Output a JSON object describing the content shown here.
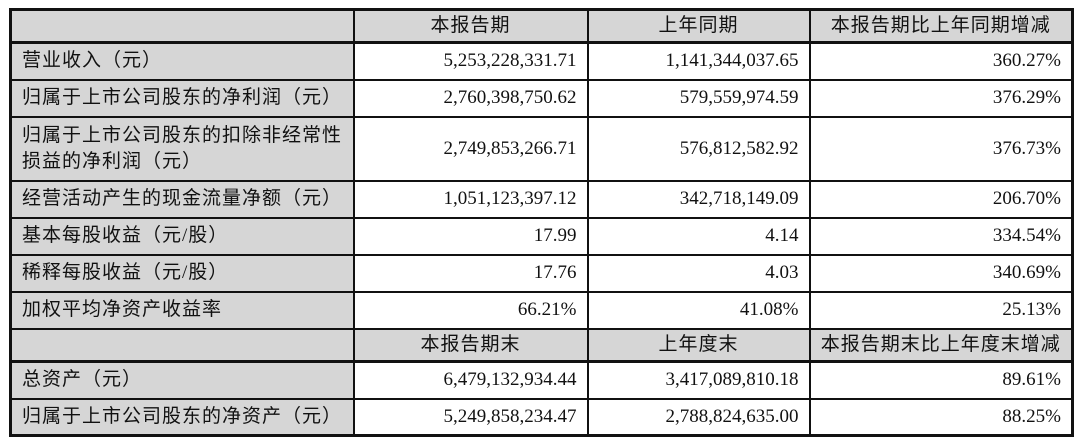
{
  "document": {
    "colors": {
      "header_bg": "#d6d6d6",
      "label_bg": "#d6d6d6",
      "border": "#111111",
      "value_bg": "#ffffff",
      "text": "#111111"
    },
    "section_income": {
      "header": {
        "blank": "",
        "current": "本报告期",
        "prior": "上年同期",
        "change": "本报告期比上年同期增减"
      },
      "rows": [
        {
          "label": "营业收入（元）",
          "current": "5,253,228,331.71",
          "prior": "1,141,344,037.65",
          "change": "360.27%"
        },
        {
          "label": "归属于上市公司股东的净利润（元）",
          "current": "2,760,398,750.62",
          "prior": "579,559,974.59",
          "change": "376.29%"
        },
        {
          "label": "归属于上市公司股东的扣除非经常性损益的净利润（元）",
          "current": "2,749,853,266.71",
          "prior": "576,812,582.92",
          "change": "376.73%"
        },
        {
          "label": "经营活动产生的现金流量净额（元）",
          "current": "1,051,123,397.12",
          "prior": "342,718,149.09",
          "change": "206.70%"
        },
        {
          "label": "基本每股收益（元/股）",
          "current": "17.99",
          "prior": "4.14",
          "change": "334.54%"
        },
        {
          "label": "稀释每股收益（元/股）",
          "current": "17.76",
          "prior": "4.03",
          "change": "340.69%"
        },
        {
          "label": "加权平均净资产收益率",
          "current": "66.21%",
          "prior": "41.08%",
          "change": "25.13%"
        }
      ]
    },
    "section_balance": {
      "header": {
        "blank": "",
        "current": "本报告期末",
        "prior": "上年度末",
        "change": "本报告期末比上年度末增减"
      },
      "rows": [
        {
          "label": "总资产（元）",
          "current": "6,479,132,934.44",
          "prior": "3,417,089,810.18",
          "change": "89.61%"
        },
        {
          "label": "归属于上市公司股东的净资产（元）",
          "current": "5,249,858,234.47",
          "prior": "2,788,824,635.00",
          "change": "88.25%"
        }
      ]
    }
  }
}
